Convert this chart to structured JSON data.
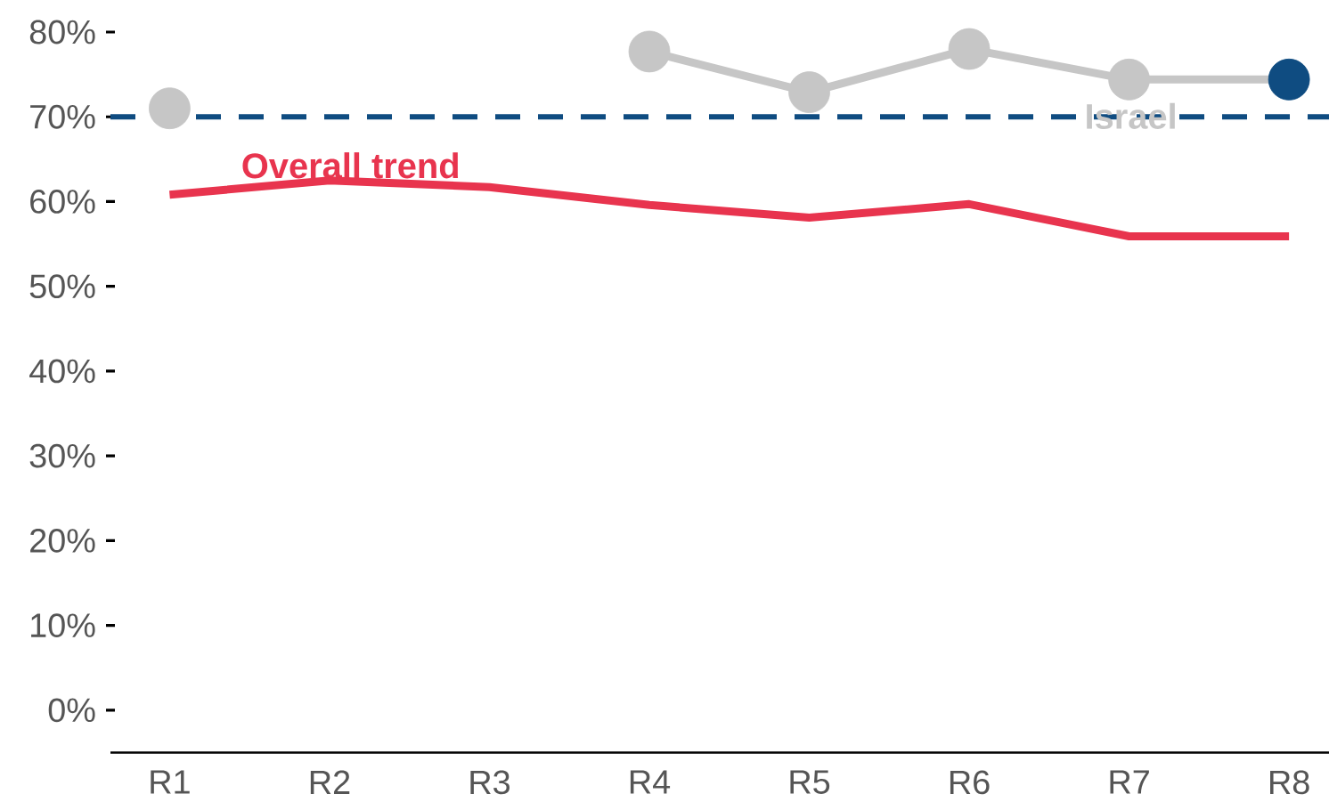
{
  "chart_data": {
    "type": "line",
    "categories": [
      "R1",
      "R2",
      "R3",
      "R4",
      "R5",
      "R6",
      "R7",
      "R8"
    ],
    "series": [
      {
        "name": "Overall trend",
        "color": "#e8344e",
        "values": [
          60.8,
          62.5,
          61.7,
          59.6,
          58.1,
          59.7,
          55.9,
          55.9
        ],
        "marker": "none"
      },
      {
        "name": "Israel",
        "color": "#c6c6c6",
        "values": [
          71,
          null,
          null,
          77.7,
          72.9,
          78,
          74.4,
          74.4
        ],
        "marker": "circle",
        "colors": [
          "#c6c6c6",
          null,
          null,
          "#c6c6c6",
          "#c6c6c6",
          "#c6c6c6",
          "#c6c6c6",
          "#0f4c81"
        ]
      }
    ],
    "ylim": [
      -5,
      80
    ],
    "yticks": [
      {
        "value": 0,
        "label": "0%"
      },
      {
        "value": 10,
        "label": "10%"
      },
      {
        "value": 20,
        "label": "20%"
      },
      {
        "value": 30,
        "label": "30%"
      },
      {
        "value": 40,
        "label": "40%"
      },
      {
        "value": 50,
        "label": "50%"
      },
      {
        "value": 60,
        "label": "60%"
      },
      {
        "value": 70,
        "label": "70%"
      },
      {
        "value": 80,
        "label": "80%"
      }
    ],
    "ref_lines": [
      {
        "axis": "y",
        "value": 70,
        "color": "#0f4c81",
        "line_style": "dashed"
      }
    ],
    "grid": false
  }
}
